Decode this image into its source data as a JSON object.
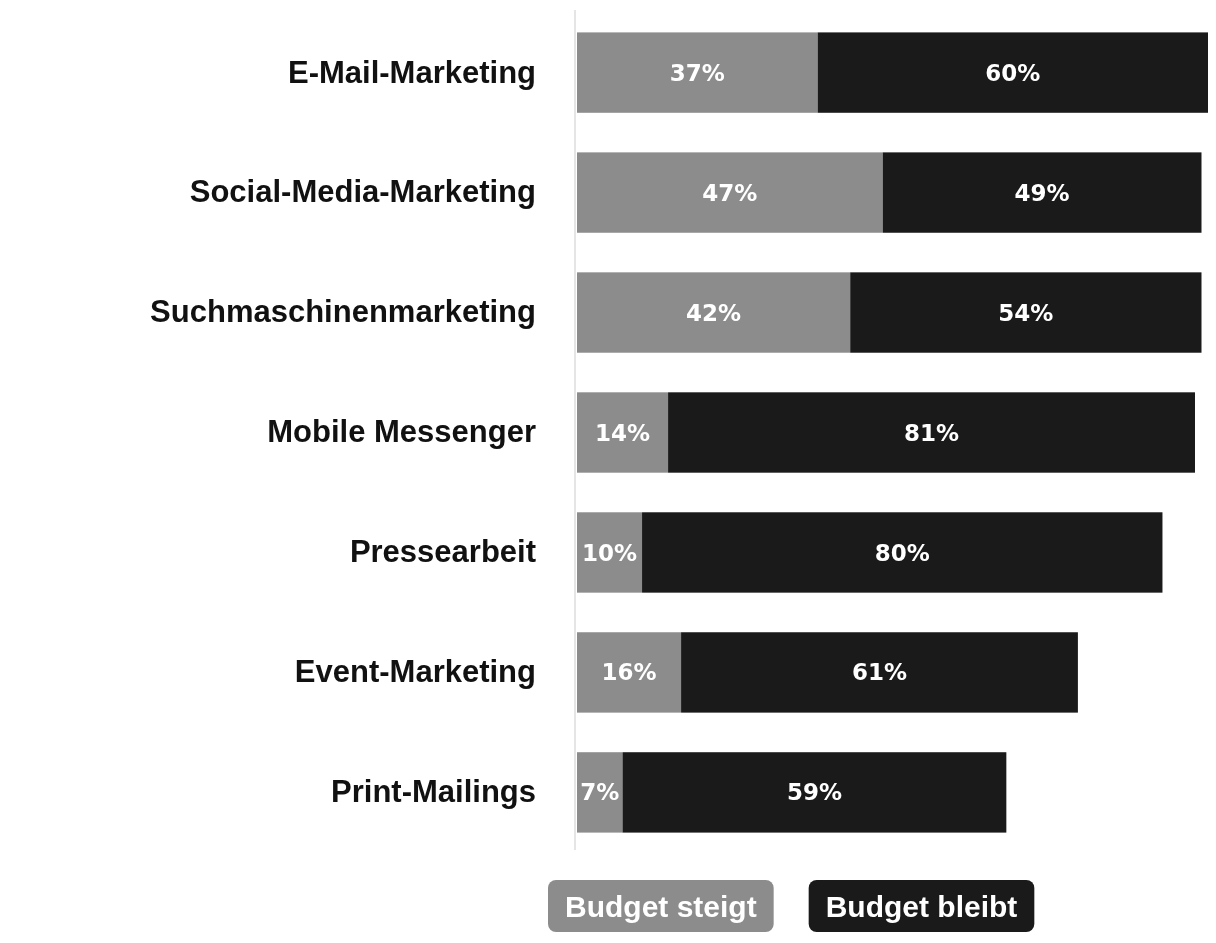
{
  "chart_data": {
    "type": "bar",
    "orientation": "horizontal",
    "stacked": true,
    "legend": "bottom",
    "categories": [
      "E-Mail-Marketing",
      "Social-Media-Marketing",
      "Suchmaschinenmarketing",
      "Mobile Messenger",
      "Pressearbeit",
      "Event-Marketing",
      "Print-Mailings"
    ],
    "series": [
      {
        "name": "Budget steigt",
        "color": "#8c8c8c",
        "values": [
          37,
          47,
          42,
          14,
          10,
          16,
          7
        ],
        "value_labels": [
          "37%",
          "47%",
          "42%",
          "14%",
          "10%",
          "16%",
          "7%"
        ]
      },
      {
        "name": "Budget bleibt",
        "color": "#1a1a1a",
        "values": [
          60,
          49,
          54,
          81,
          80,
          61,
          59
        ],
        "value_labels": [
          "60%",
          "49%",
          "54%",
          "81%",
          "80%",
          "61%",
          "59%"
        ]
      }
    ]
  }
}
